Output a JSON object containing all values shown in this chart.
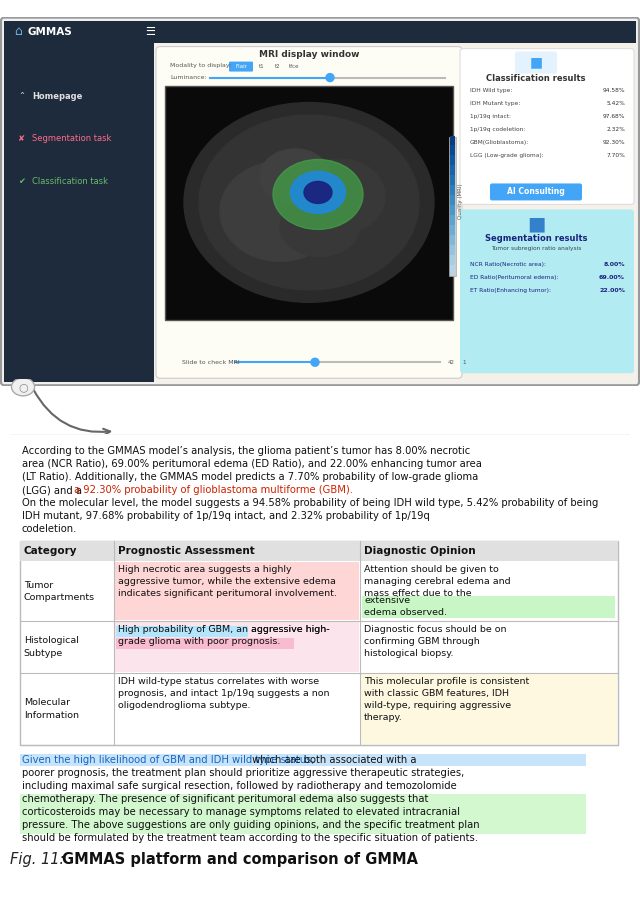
{
  "app_title": "GMMAS",
  "nav_items": [
    "Homepage",
    "Segmentation task",
    "Classification task"
  ],
  "mri_title": "MRI display window",
  "classification_title": "Classification results",
  "classification_items": [
    [
      "IDH Wild type:",
      "94.58%"
    ],
    [
      "IDH Mutant type:",
      "5.42%"
    ],
    [
      "1p/19q intact:",
      "97.68%"
    ],
    [
      "1p/19q codeletion:",
      "2.32%"
    ],
    [
      "GBM(Glioblastoma):",
      "92.30%"
    ],
    [
      "LGG (Low-grade glioma):",
      "7.70%"
    ]
  ],
  "segmentation_title": "Segmentation results",
  "segmentation_subtitle": "Tumor subregion ratio analysis",
  "segmentation_items": [
    [
      "NCR Ratio(Necrotic area):",
      "8.00%"
    ],
    [
      "ED Ratio(Peritumoral edema):",
      "69.00%"
    ],
    [
      "ET Ratio(Enhancing tumor):",
      "22.00%"
    ]
  ],
  "ai_button": "AI Consulting",
  "table_headers": [
    "Category",
    "Prognostic Assessment",
    "Diagnostic Opinion"
  ],
  "table_rows": [
    {
      "category": "Tumor\nCompartments",
      "assessment": "High necrotic area suggests a highly\naggressive tumor, while the extensive edema\nindicates significant peritumoral involvement.",
      "opinion": "Attention should be given to\nmanaging cerebral edema and\nmass effect due to the",
      "opinion2": "extensive\nedema observed.",
      "assess_bg": "#ffd6d6",
      "opinion_hl_bg": "#c8f7c5"
    },
    {
      "category": "Histological\nSubtype",
      "assessment_pre": "",
      "assessment_hl": "High probability of GBM,",
      "assessment_hl2": " an aggressive high-\n",
      "assessment_pink": "grade glioma with poor prognosis.",
      "assessment": "High probability of GBM, an aggressive high-\ngrade glioma with poor prognosis.",
      "opinion": "Diagnostic focus should be on\nconfirming GBM through\nhistological biopsy.",
      "assess_bg": "#fce4ec",
      "assess_hl_bg": "#b3e5fc",
      "assess_pink_bg": "#fce4ec",
      "opinion_bg": "#ffffff"
    },
    {
      "category": "Molecular\nInformation",
      "assessment": "IDH wild-type status correlates with worse\nprognosis, and intact 1p/19q suggests a non\noligodendroglioma subtype.",
      "opinion": "This molecular profile is consistent\nwith classic GBM features, IDH\nwild-type, requiring aggressive\ntherapy.",
      "assess_bg": "#ffffff",
      "opinion_bg": "#fff8e1"
    }
  ],
  "nav_bg": "#1e2b3c",
  "app_bar_bg": "#1e2b3c",
  "content_bg": "#f5f0e8",
  "seg_card_bg": "#b2ebf2",
  "table_header_bg": "#e0e0e0"
}
